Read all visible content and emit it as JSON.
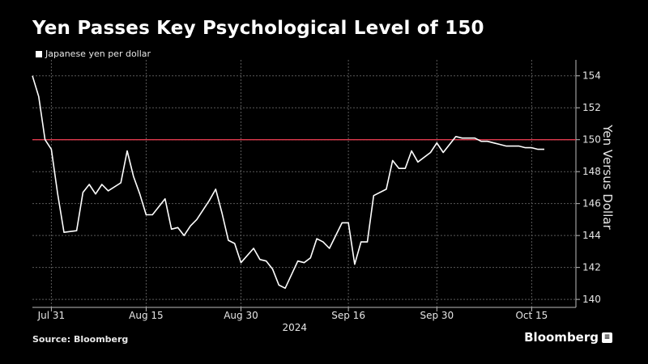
{
  "title": "Yen Passes Key Psychological Level of 150",
  "legend": "Japanese yen per dollar",
  "source": "Source: Bloomberg",
  "brand": "Bloomberg",
  "colors": {
    "background": "#000000",
    "series": "#ffffff",
    "threshold": "#e03a4e",
    "grid": "#5a5a5a"
  },
  "chart_data": {
    "type": "line",
    "title": "Yen Passes Key Psychological Level of 150",
    "ylabel": "Yen Versus Dollar",
    "xlabel": "2024",
    "ylim": [
      139.5,
      155
    ],
    "yticks": [
      140,
      142,
      144,
      146,
      148,
      150,
      152,
      154
    ],
    "xticks": [
      {
        "date": "2024-07-31",
        "label": "Jul 31"
      },
      {
        "date": "2024-08-15",
        "label": "Aug 15"
      },
      {
        "date": "2024-08-30",
        "label": "Aug 30"
      },
      {
        "date": "2024-09-16",
        "label": "Sep 16"
      },
      {
        "date": "2024-09-30",
        "label": "Sep 30"
      },
      {
        "date": "2024-10-15",
        "label": "Oct 15"
      }
    ],
    "xlim": [
      "2024-07-28",
      "2024-10-22"
    ],
    "threshold": 150,
    "grid": true,
    "legend_position": "top-left",
    "series": [
      {
        "name": "Japanese yen per dollar",
        "x": [
          "2024-07-28",
          "2024-07-29",
          "2024-07-30",
          "2024-07-31",
          "2024-08-01",
          "2024-08-02",
          "2024-08-04",
          "2024-08-05",
          "2024-08-06",
          "2024-08-07",
          "2024-08-08",
          "2024-08-09",
          "2024-08-11",
          "2024-08-12",
          "2024-08-13",
          "2024-08-14",
          "2024-08-15",
          "2024-08-16",
          "2024-08-18",
          "2024-08-19",
          "2024-08-20",
          "2024-08-21",
          "2024-08-22",
          "2024-08-23",
          "2024-08-25",
          "2024-08-26",
          "2024-08-27",
          "2024-08-28",
          "2024-08-29",
          "2024-08-30",
          "2024-09-01",
          "2024-09-02",
          "2024-09-03",
          "2024-09-04",
          "2024-09-05",
          "2024-09-06",
          "2024-09-08",
          "2024-09-09",
          "2024-09-10",
          "2024-09-11",
          "2024-09-12",
          "2024-09-13",
          "2024-09-15",
          "2024-09-16",
          "2024-09-17",
          "2024-09-18",
          "2024-09-19",
          "2024-09-20",
          "2024-09-22",
          "2024-09-23",
          "2024-09-24",
          "2024-09-25",
          "2024-09-26",
          "2024-09-27",
          "2024-09-29",
          "2024-09-30",
          "2024-10-01",
          "2024-10-02",
          "2024-10-03",
          "2024-10-04",
          "2024-10-06",
          "2024-10-07",
          "2024-10-08",
          "2024-10-09",
          "2024-10-10",
          "2024-10-11",
          "2024-10-13",
          "2024-10-14",
          "2024-10-15",
          "2024-10-16",
          "2024-10-17"
        ],
        "values": [
          154.0,
          152.7,
          150.0,
          149.4,
          146.6,
          144.2,
          144.3,
          146.7,
          147.2,
          146.6,
          147.2,
          146.8,
          147.3,
          149.3,
          147.7,
          146.6,
          145.3,
          145.3,
          146.3,
          144.4,
          144.5,
          144.0,
          144.6,
          145.0,
          146.2,
          146.9,
          145.4,
          143.7,
          143.5,
          142.3,
          143.2,
          142.5,
          142.4,
          141.9,
          140.9,
          140.7,
          142.4,
          142.3,
          142.6,
          143.8,
          143.6,
          143.2,
          144.8,
          144.8,
          142.2,
          143.6,
          143.6,
          146.5,
          146.9,
          148.7,
          148.2,
          148.2,
          149.3,
          148.6,
          149.2,
          149.8,
          149.2,
          149.7,
          150.2,
          150.1,
          150.1,
          149.9,
          149.9,
          149.8,
          149.7,
          149.6,
          149.6,
          149.5,
          149.5,
          149.4,
          149.4
        ]
      }
    ]
  }
}
